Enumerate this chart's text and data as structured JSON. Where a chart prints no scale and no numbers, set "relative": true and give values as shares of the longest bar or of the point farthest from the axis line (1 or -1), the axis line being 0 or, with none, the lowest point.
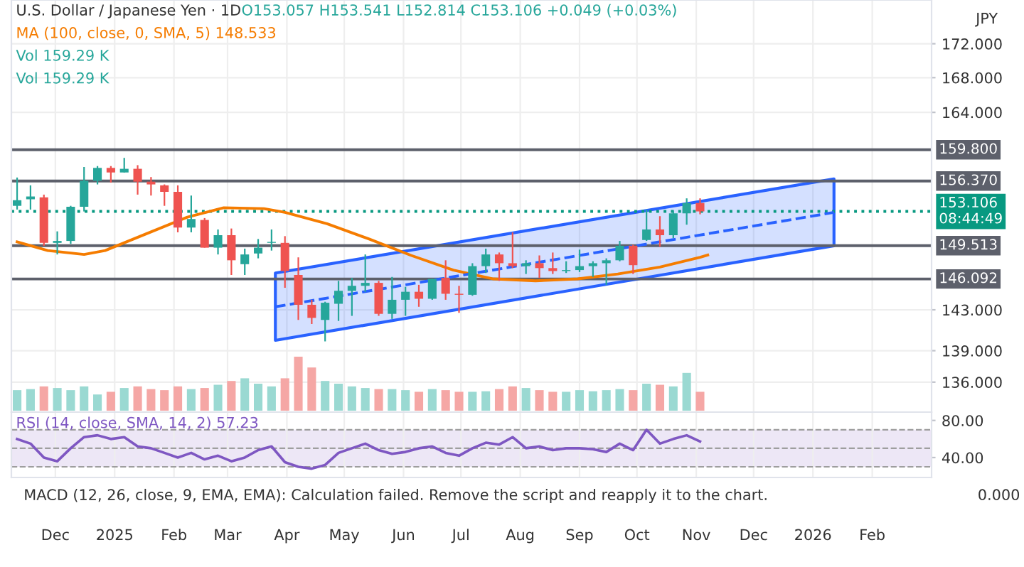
{
  "chart_data": [
    {
      "type": "candlestick",
      "title": "U.S. Dollar / Japanese Yen · 1D",
      "ylabel": "JPY",
      "annotations": [
        "O153.057 H153.541 L152.814 C153.106 +0.049 (+0.03%)",
        "MA (100, close, 0, SMA, 5) 148.533",
        "Vol 159.29 K",
        "Vol 159.29 K"
      ],
      "x": [
        "2024-11-11",
        "2024-11-18",
        "2024-11-25",
        "2024-12-02",
        "2024-12-09",
        "2024-12-16",
        "2024-12-23",
        "2024-12-30",
        "2025-01-06",
        "2025-01-13",
        "2025-01-20",
        "2025-01-27",
        "2025-02-03",
        "2025-02-10",
        "2025-02-17",
        "2025-02-24",
        "2025-03-03",
        "2025-03-10",
        "2025-03-17",
        "2025-03-24",
        "2025-03-31",
        "2025-04-07",
        "2025-04-14",
        "2025-04-21",
        "2025-04-28",
        "2025-05-05",
        "2025-05-12",
        "2025-05-19",
        "2025-05-26",
        "2025-06-02",
        "2025-06-09",
        "2025-06-16",
        "2025-06-23",
        "2025-06-30",
        "2025-07-07",
        "2025-07-14",
        "2025-07-21",
        "2025-07-28",
        "2025-08-04",
        "2025-08-11",
        "2025-08-18",
        "2025-08-25",
        "2025-09-01",
        "2025-09-08",
        "2025-09-15",
        "2025-09-22",
        "2025-09-29",
        "2025-10-06",
        "2025-10-13",
        "2025-10-20",
        "2025-10-27",
        "2025-11-03"
      ],
      "ohlc": [
        [
          153.7,
          156.75,
          153.3,
          154.3
        ],
        [
          154.4,
          155.9,
          153.3,
          154.7
        ],
        [
          154.6,
          154.9,
          149.5,
          149.8
        ],
        [
          149.8,
          151.0,
          148.6,
          150.0
        ],
        [
          150.0,
          153.7,
          149.7,
          153.6
        ],
        [
          153.6,
          157.9,
          153.1,
          156.4
        ],
        [
          156.4,
          158.0,
          156.0,
          157.8
        ],
        [
          157.8,
          158.0,
          156.2,
          157.3
        ],
        [
          157.3,
          158.9,
          157.3,
          157.7
        ],
        [
          157.7,
          158.1,
          154.9,
          156.3
        ],
        [
          156.3,
          156.8,
          154.8,
          156.0
        ],
        [
          155.9,
          156.0,
          153.7,
          155.2
        ],
        [
          155.2,
          155.9,
          150.9,
          151.4
        ],
        [
          151.4,
          154.8,
          150.9,
          152.3
        ],
        [
          152.2,
          152.4,
          149.3,
          149.3
        ],
        [
          149.3,
          151.2,
          148.6,
          150.6
        ],
        [
          150.6,
          151.3,
          146.5,
          148.0
        ],
        [
          147.6,
          149.2,
          146.5,
          148.6
        ],
        [
          148.7,
          150.2,
          148.2,
          149.3
        ],
        [
          149.8,
          151.2,
          149.0,
          149.9
        ],
        [
          149.8,
          150.5,
          145.2,
          146.9
        ],
        [
          146.5,
          148.3,
          142.0,
          143.5
        ],
        [
          143.5,
          144.0,
          141.6,
          142.2
        ],
        [
          142.0,
          143.8,
          139.9,
          143.7
        ],
        [
          143.6,
          145.9,
          141.9,
          144.9
        ],
        [
          144.9,
          146.2,
          142.4,
          145.4
        ],
        [
          145.4,
          148.6,
          144.8,
          145.7
        ],
        [
          145.7,
          145.9,
          142.4,
          142.6
        ],
        [
          142.6,
          146.3,
          142.1,
          144.0
        ],
        [
          144.0,
          145.3,
          142.4,
          144.8
        ],
        [
          144.8,
          145.5,
          143.3,
          144.1
        ],
        [
          144.1,
          146.1,
          144.0,
          146.1
        ],
        [
          146.2,
          148.0,
          144.0,
          144.6
        ],
        [
          144.6,
          145.4,
          142.7,
          144.5
        ],
        [
          144.5,
          147.7,
          144.4,
          147.4
        ],
        [
          147.4,
          149.2,
          146.7,
          148.6
        ],
        [
          148.6,
          148.8,
          145.9,
          147.7
        ],
        [
          147.7,
          150.9,
          147.2,
          147.4
        ],
        [
          147.4,
          148.0,
          146.6,
          147.7
        ],
        [
          147.7,
          148.5,
          146.2,
          147.2
        ],
        [
          147.2,
          148.8,
          146.6,
          146.9
        ],
        [
          146.9,
          147.9,
          146.7,
          147.0
        ],
        [
          147.0,
          149.1,
          146.8,
          147.4
        ],
        [
          147.4,
          147.9,
          146.3,
          147.7
        ],
        [
          147.7,
          148.2,
          145.5,
          148.0
        ],
        [
          148.0,
          150.0,
          147.9,
          149.5
        ],
        [
          149.5,
          149.6,
          146.6,
          147.5
        ],
        [
          150.1,
          153.3,
          150.0,
          151.2
        ],
        [
          151.2,
          152.6,
          149.4,
          150.6
        ],
        [
          150.6,
          153.2,
          150.3,
          152.9
        ],
        [
          152.9,
          154.5,
          151.7,
          154.0
        ],
        [
          154.0,
          154.5,
          152.8,
          153.106
        ]
      ],
      "colors": [
        "#26a69a",
        "#26a69a",
        "#ef5350",
        "#26a69a",
        "#26a69a",
        "#26a69a",
        "#26a69a",
        "#ef5350",
        "#26a69a",
        "#ef5350",
        "#ef5350",
        "#ef5350",
        "#ef5350",
        "#26a69a",
        "#ef5350",
        "#26a69a",
        "#ef5350",
        "#26a69a",
        "#26a69a",
        "#26a69a",
        "#ef5350",
        "#ef5350",
        "#ef5350",
        "#26a69a",
        "#26a69a",
        "#26a69a",
        "#26a69a",
        "#ef5350",
        "#26a69a",
        "#26a69a",
        "#ef5350",
        "#26a69a",
        "#ef5350",
        "#ef5350",
        "#26a69a",
        "#26a69a",
        "#ef5350",
        "#ef5350",
        "#26a69a",
        "#ef5350",
        "#ef5350",
        "#26a69a",
        "#26a69a",
        "#26a69a",
        "#26a69a",
        "#26a69a",
        "#ef5350",
        "#26a69a",
        "#ef5350",
        "#26a69a",
        "#26a69a",
        "#ef5350"
      ],
      "series": [
        {
          "type": "line",
          "color": "#f57c00",
          "x": [
            "2024-11-11",
            "2024-11-27",
            "2024-12-16",
            "2024-12-27",
            "2025-01-17",
            "2025-02-08",
            "2025-02-27",
            "2025-03-20",
            "2025-03-31",
            "2025-04-22",
            "2025-05-14",
            "2025-06-05",
            "2025-06-27",
            "2025-07-18",
            "2025-08-09",
            "2025-08-31",
            "2025-09-21",
            "2025-10-13",
            "2025-11-03",
            "2025-11-07"
          ],
          "values": [
            149.9,
            149.0,
            148.6,
            149.0,
            150.7,
            152.5,
            153.5,
            153.4,
            153.0,
            151.8,
            150.2,
            148.5,
            147.0,
            146.1,
            145.9,
            146.1,
            146.6,
            147.3,
            148.3,
            148.533
          ]
        },
        {
          "type": "line",
          "color": "#2962ff",
          "line_style": "dashed",
          "x": [
            "2025-03-26",
            "2026-01-12"
          ],
          "values": [
            143.3,
            153.0
          ],
          "lower": [
            140.0,
            149.5
          ],
          "upper": [
            146.7,
            156.6
          ]
        }
      ],
      "ref_lines": [
        {
          "axis": "y",
          "value": 159.8,
          "label": "159.800",
          "color": "#5d606b",
          "line_style": "solid"
        },
        {
          "axis": "y",
          "value": 156.37,
          "label": "156.370",
          "color": "#5d606b",
          "line_style": "solid"
        },
        {
          "axis": "y",
          "value": 149.513,
          "label": "149.513",
          "color": "#5d606b",
          "line_style": "solid"
        },
        {
          "axis": "y",
          "value": 146.092,
          "label": "146.092",
          "color": "#5d606b",
          "line_style": "solid"
        },
        {
          "axis": "y",
          "value": 153.106,
          "label": "153.106\n08:44:49",
          "color": "#089981",
          "line_style": "dotted"
        }
      ],
      "log": true,
      "ylim": [
        133.2,
        177.3
      ],
      "yticks": [
        {
          "value": 136,
          "label": "136.000"
        },
        {
          "value": 139,
          "label": "139.000"
        },
        {
          "value": 143,
          "label": "143.000"
        },
        {
          "value": 164,
          "label": "164.000"
        },
        {
          "value": 168,
          "label": "168.000"
        },
        {
          "value": 172,
          "label": "172.000"
        }
      ],
      "xlim": [
        "2024-11-08",
        "2026-03-04"
      ],
      "xticks": [
        {
          "value": "2024-12-01",
          "label": null
        },
        {
          "value": "2025-01-01",
          "label": null
        },
        {
          "value": "2025-02-01",
          "label": null
        },
        {
          "value": "2025-03-01",
          "label": null
        },
        {
          "value": "2025-04-01",
          "label": null
        },
        {
          "value": "2025-05-01",
          "label": null
        },
        {
          "value": "2025-06-01",
          "label": null
        },
        {
          "value": "2025-07-01",
          "label": null
        },
        {
          "value": "2025-08-01",
          "label": null
        },
        {
          "value": "2025-09-01",
          "label": null
        },
        {
          "value": "2025-10-01",
          "label": null
        },
        {
          "value": "2025-11-01",
          "label": null
        },
        {
          "value": "2025-12-01",
          "label": null
        },
        {
          "value": "2026-01-01",
          "label": null
        },
        {
          "value": "2026-02-01",
          "label": null
        }
      ],
      "tick_labels": "y",
      "grid": true
    },
    {
      "type": "bar",
      "relative": true,
      "tick_labels": false,
      "x": [
        "2024-11-11",
        "2024-11-18",
        "2024-11-25",
        "2024-12-02",
        "2024-12-09",
        "2024-12-16",
        "2024-12-23",
        "2024-12-30",
        "2025-01-06",
        "2025-01-13",
        "2025-01-20",
        "2025-01-27",
        "2025-02-03",
        "2025-02-10",
        "2025-02-17",
        "2025-02-24",
        "2025-03-03",
        "2025-03-10",
        "2025-03-17",
        "2025-03-24",
        "2025-03-31",
        "2025-04-07",
        "2025-04-14",
        "2025-04-21",
        "2025-04-28",
        "2025-05-05",
        "2025-05-12",
        "2025-05-19",
        "2025-05-26",
        "2025-06-02",
        "2025-06-09",
        "2025-06-16",
        "2025-06-23",
        "2025-06-30",
        "2025-07-07",
        "2025-07-14",
        "2025-07-21",
        "2025-07-28",
        "2025-08-04",
        "2025-08-11",
        "2025-08-18",
        "2025-08-25",
        "2025-09-01",
        "2025-09-08",
        "2025-09-15",
        "2025-09-22",
        "2025-09-29",
        "2025-10-06",
        "2025-10-13",
        "2025-10-20",
        "2025-10-27",
        "2025-11-03"
      ],
      "values": [
        0.38,
        0.4,
        0.45,
        0.42,
        0.38,
        0.45,
        0.3,
        0.35,
        0.42,
        0.45,
        0.4,
        0.38,
        0.45,
        0.4,
        0.42,
        0.48,
        0.55,
        0.6,
        0.5,
        0.45,
        0.6,
        1.0,
        0.8,
        0.55,
        0.5,
        0.45,
        0.42,
        0.4,
        0.4,
        0.38,
        0.35,
        0.4,
        0.38,
        0.35,
        0.35,
        0.36,
        0.4,
        0.45,
        0.42,
        0.38,
        0.35,
        0.35,
        0.38,
        0.36,
        0.38,
        0.4,
        0.38,
        0.5,
        0.48,
        0.45,
        0.7,
        0.35
      ],
      "colors": [
        "#9ad9d2",
        "#9ad9d2",
        "#f5a7a5",
        "#9ad9d2",
        "#9ad9d2",
        "#9ad9d2",
        "#9ad9d2",
        "#f5a7a5",
        "#9ad9d2",
        "#f5a7a5",
        "#f5a7a5",
        "#f5a7a5",
        "#f5a7a5",
        "#9ad9d2",
        "#f5a7a5",
        "#9ad9d2",
        "#f5a7a5",
        "#9ad9d2",
        "#9ad9d2",
        "#9ad9d2",
        "#f5a7a5",
        "#f5a7a5",
        "#f5a7a5",
        "#9ad9d2",
        "#9ad9d2",
        "#9ad9d2",
        "#9ad9d2",
        "#f5a7a5",
        "#9ad9d2",
        "#9ad9d2",
        "#f5a7a5",
        "#9ad9d2",
        "#f5a7a5",
        "#f5a7a5",
        "#9ad9d2",
        "#9ad9d2",
        "#f5a7a5",
        "#f5a7a5",
        "#9ad9d2",
        "#f5a7a5",
        "#f5a7a5",
        "#9ad9d2",
        "#9ad9d2",
        "#9ad9d2",
        "#9ad9d2",
        "#9ad9d2",
        "#f5a7a5",
        "#9ad9d2",
        "#f5a7a5",
        "#9ad9d2",
        "#9ad9d2",
        "#f5a7a5"
      ],
      "xlim": [
        "2024-11-08",
        "2026-03-04"
      ]
    },
    {
      "type": "line",
      "color": "#7e57c2",
      "annotations": [
        "RSI (14, close, SMA, 14, 2) 57.23",
        "MACD (12, 26, close, 9, EMA, EMA): Calculation failed. Remove the script and reapply it to the chart.",
        "0.000"
      ],
      "x": [
        "2024-11-11",
        "2024-11-18",
        "2024-11-25",
        "2024-12-02",
        "2024-12-09",
        "2024-12-16",
        "2024-12-23",
        "2024-12-30",
        "2025-01-06",
        "2025-01-13",
        "2025-01-20",
        "2025-01-27",
        "2025-02-03",
        "2025-02-10",
        "2025-02-17",
        "2025-02-24",
        "2025-03-03",
        "2025-03-10",
        "2025-03-17",
        "2025-03-24",
        "2025-03-31",
        "2025-04-07",
        "2025-04-14",
        "2025-04-21",
        "2025-04-28",
        "2025-05-05",
        "2025-05-12",
        "2025-05-19",
        "2025-05-26",
        "2025-06-02",
        "2025-06-09",
        "2025-06-16",
        "2025-06-23",
        "2025-06-30",
        "2025-07-07",
        "2025-07-14",
        "2025-07-21",
        "2025-07-28",
        "2025-08-04",
        "2025-08-11",
        "2025-08-18",
        "2025-08-25",
        "2025-09-01",
        "2025-09-08",
        "2025-09-15",
        "2025-09-22",
        "2025-09-29",
        "2025-10-06",
        "2025-10-13",
        "2025-10-20",
        "2025-10-27",
        "2025-11-03"
      ],
      "values": [
        60,
        55,
        40,
        36,
        50,
        62,
        64,
        60,
        62,
        52,
        50,
        45,
        40,
        45,
        38,
        42,
        36,
        40,
        48,
        52,
        35,
        30,
        28,
        32,
        45,
        50,
        55,
        48,
        44,
        46,
        50,
        52,
        45,
        42,
        50,
        56,
        54,
        62,
        50,
        52,
        48,
        50,
        50,
        49,
        46,
        55,
        48,
        70,
        55,
        60,
        64,
        57.23
      ],
      "bands": [
        {
          "axis": "y",
          "from": 30,
          "to": 70,
          "color": "#ede7f6"
        }
      ],
      "ref_lines": [
        {
          "axis": "y",
          "value": 70,
          "color": "#9e9e9e",
          "line_style": "dashed"
        },
        {
          "axis": "y",
          "value": 50,
          "color": "#9e9e9e",
          "line_style": "dashed"
        },
        {
          "axis": "y",
          "value": 30,
          "color": "#9e9e9e",
          "line_style": "dashed"
        }
      ],
      "ylim": [
        18.5,
        89
      ],
      "yticks": [
        {
          "value": 40,
          "label": "40.00"
        },
        {
          "value": 80,
          "label": "80.00"
        }
      ],
      "xlim": [
        "2024-11-08",
        "2026-03-04"
      ],
      "xticks": [
        {
          "value": "2024-12-01",
          "label": "Dec"
        },
        {
          "value": "2025-01-01",
          "label": "2025"
        },
        {
          "value": "2025-02-01",
          "label": "Feb"
        },
        {
          "value": "2025-03-01",
          "label": "Mar"
        },
        {
          "value": "2025-04-01",
          "label": "Apr"
        },
        {
          "value": "2025-05-01",
          "label": "May"
        },
        {
          "value": "2025-06-01",
          "label": "Jun"
        },
        {
          "value": "2025-07-01",
          "label": "Jul"
        },
        {
          "value": "2025-08-01",
          "label": "Aug"
        },
        {
          "value": "2025-09-01",
          "label": "Sep"
        },
        {
          "value": "2025-10-01",
          "label": "Oct"
        },
        {
          "value": "2025-11-01",
          "label": "Nov"
        },
        {
          "value": "2025-12-01",
          "label": "Dec"
        },
        {
          "value": "2026-01-01",
          "label": "2026"
        },
        {
          "value": "2026-02-01",
          "label": "Feb"
        }
      ],
      "grid": "x"
    }
  ]
}
